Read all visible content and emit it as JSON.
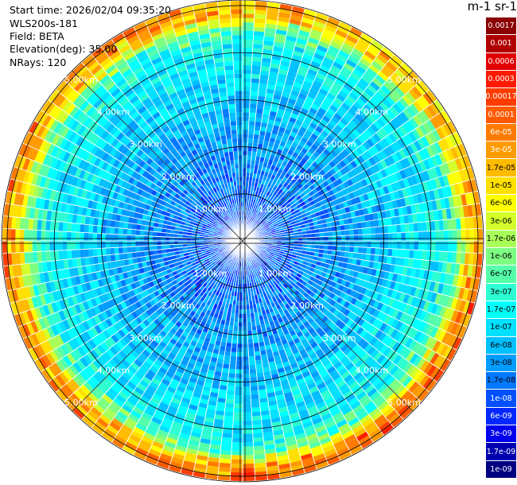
{
  "header": {
    "start_time": "Start time: 2026/02/04 09:35:20",
    "device": "WLS200s-181",
    "field": "Field: BETA",
    "elevation": "Elevation(deg): 35.00",
    "nrays": "NRays: 120"
  },
  "colorbar": {
    "title": "m-1 sr-1",
    "labels": [
      "0.0017",
      "0.001",
      "0.0006",
      "0.0003",
      "0.00017",
      "0.0001",
      "6e-05",
      "3e-05",
      "1.7e-05",
      "1e-05",
      "6e-06",
      "3e-06",
      "1.7e-06",
      "1e-06",
      "6e-07",
      "3e-07",
      "1.7e-07",
      "1e-07",
      "6e-08",
      "3e-08",
      "1.7e-08",
      "1e-08",
      "6e-09",
      "3e-09",
      "1.7e-09",
      "1e-09"
    ],
    "colors": [
      "#8b0000",
      "#b00000",
      "#e00000",
      "#ff1a00",
      "#ff3c00",
      "#ff5a00",
      "#ff7a00",
      "#ff9a00",
      "#ffbb00",
      "#ffe000",
      "#ffff00",
      "#d4ff2a",
      "#a8ff57",
      "#7dff82",
      "#55ffaa",
      "#2dffd2",
      "#00ffff",
      "#00e0ff",
      "#00c0ff",
      "#009cff",
      "#0078ff",
      "#0050ff",
      "#0028ff",
      "#0000ee",
      "#0000b0",
      "#000080"
    ]
  },
  "chart_data": {
    "type": "heatmap",
    "projection": "polar-ppi",
    "field": "BETA",
    "elevation_deg": 35.0,
    "n_rays": 120,
    "range_rings_km": [
      1,
      2,
      3,
      4,
      5
    ],
    "ring_labels": [
      "1.00km",
      "2.00km",
      "3.00km",
      "4.00km",
      "5.00km"
    ],
    "max_range_km": 5.1,
    "scale": "log",
    "value_range": [
      1e-09,
      0.0017
    ],
    "typical_values": [
      {
        "range_km": 0.5,
        "value": 1e-08
      },
      {
        "range_km": 1.5,
        "value": 2e-08
      },
      {
        "range_km": 2.5,
        "value": 4e-08
      },
      {
        "range_km": 3.5,
        "value": 1e-07
      },
      {
        "range_km": 4.5,
        "value": 2e-07
      },
      {
        "range_km": 4.8,
        "value": 3e-06
      }
    ]
  }
}
